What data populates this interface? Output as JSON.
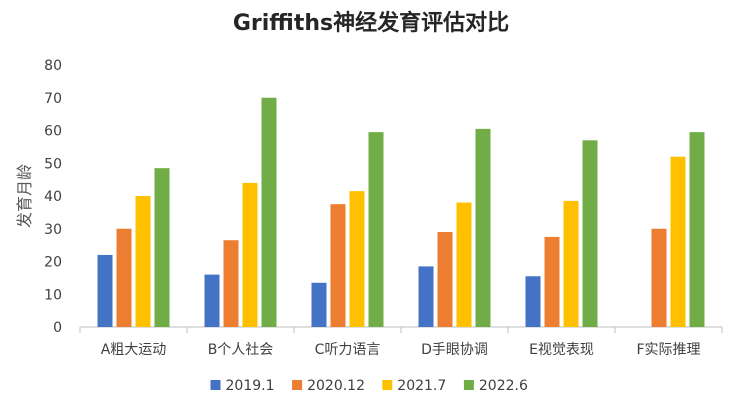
{
  "chart_data": {
    "type": "bar",
    "title": "Griffiths神经发育评估对比",
    "ylabel": "发育月龄",
    "xlabel": "",
    "ylim": [
      0,
      80
    ],
    "yticks": [
      0,
      10,
      20,
      30,
      40,
      50,
      60,
      70,
      80
    ],
    "grid": false,
    "legend_position": "bottom",
    "categories": [
      "A粗大运动",
      "B个人社会",
      "C听力语言",
      "D手眼协调",
      "E视觉表现",
      "F实际推理"
    ],
    "series": [
      {
        "name": "2019.1",
        "color": "#4472C4",
        "values": [
          22,
          16,
          13.5,
          18.5,
          15.5,
          null
        ]
      },
      {
        "name": "2020.12",
        "color": "#ED7D31",
        "values": [
          30,
          26.5,
          37.5,
          29,
          27.5,
          30
        ]
      },
      {
        "name": "2021.7",
        "color": "#FFC000",
        "values": [
          40,
          44,
          41.5,
          38,
          38.5,
          52
        ]
      },
      {
        "name": "2022.6",
        "color": "#70AD47",
        "values": [
          48.5,
          70,
          59.5,
          60.5,
          57,
          59.5
        ]
      }
    ]
  }
}
